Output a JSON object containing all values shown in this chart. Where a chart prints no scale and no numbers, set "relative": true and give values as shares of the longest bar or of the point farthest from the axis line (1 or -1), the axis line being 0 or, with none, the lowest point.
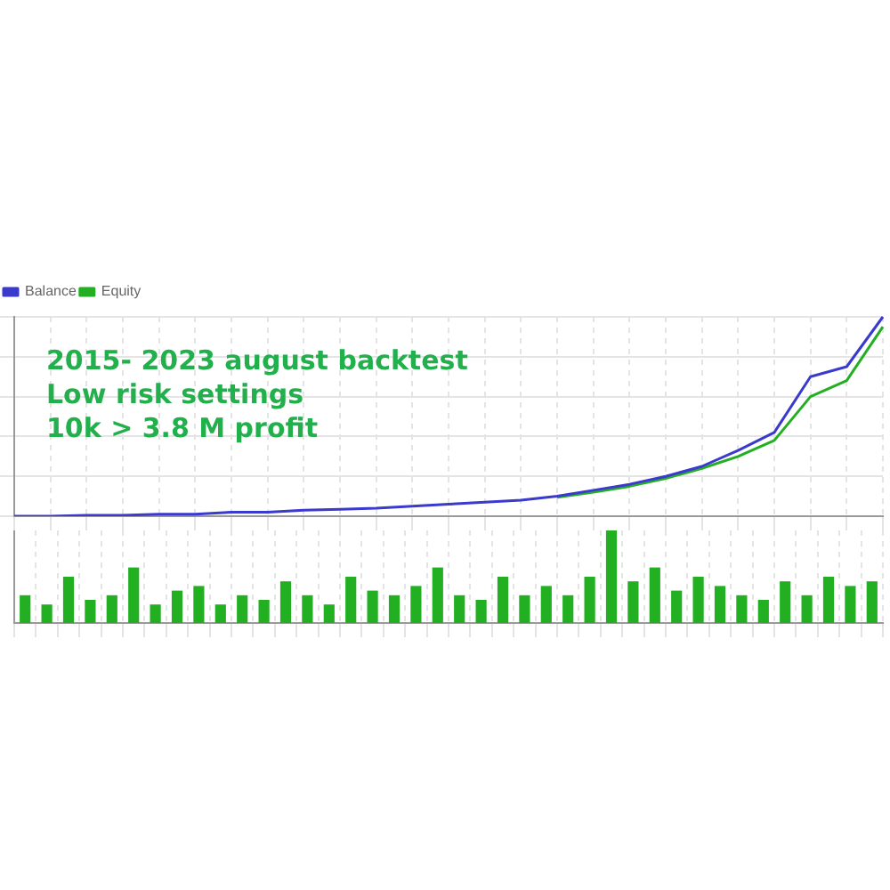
{
  "chart_data": [
    {
      "type": "line",
      "relative": true,
      "grid": true,
      "legend": "top left",
      "marker": "none",
      "categories": [
        null,
        null,
        null,
        null,
        null,
        null,
        null,
        null,
        null,
        null,
        null,
        null,
        null,
        null,
        null,
        null,
        null,
        null,
        null,
        null,
        null,
        null,
        null,
        null,
        null
      ],
      "series": [
        {
          "name": "Balance",
          "color": "#3a3acd",
          "values": [
            0,
            0,
            0.005,
            0.005,
            0.01,
            0.01,
            0.02,
            0.02,
            0.03,
            0.035,
            0.04,
            0.05,
            0.06,
            0.07,
            0.08,
            0.1,
            0.13,
            0.16,
            0.2,
            0.25,
            0.33,
            0.42,
            0.7,
            0.75,
            1.0
          ]
        },
        {
          "name": "Equity",
          "color": "#22b022",
          "values": [
            null,
            null,
            null,
            null,
            null,
            null,
            null,
            null,
            null,
            null,
            null,
            null,
            null,
            null,
            null,
            0.095,
            0.12,
            0.15,
            0.19,
            0.24,
            0.3,
            0.38,
            0.6,
            0.68,
            0.95
          ]
        }
      ],
      "annotations": [
        "2015- 2023 august backtest",
        "Low risk settings",
        "10k > 3.8 M profit"
      ]
    },
    {
      "type": "bar",
      "relative": true,
      "grid": "x",
      "categories": [
        null,
        null,
        null,
        null,
        null,
        null,
        null,
        null,
        null,
        null,
        null,
        null,
        null,
        null,
        null,
        null,
        null,
        null,
        null,
        null,
        null,
        null,
        null,
        null,
        null,
        null,
        null,
        null,
        null,
        null,
        null,
        null,
        null,
        null,
        null,
        null,
        null,
        null,
        null,
        null
      ],
      "series": [
        {
          "color": "#22b022",
          "values": [
            0.3,
            0.2,
            0.5,
            0.25,
            0.3,
            0.6,
            0.2,
            0.35,
            0.4,
            0.2,
            0.3,
            0.25,
            0.45,
            0.3,
            0.2,
            0.5,
            0.35,
            0.3,
            0.4,
            0.6,
            0.3,
            0.25,
            0.5,
            0.3,
            0.4,
            0.3,
            0.5,
            1.0,
            0.45,
            0.6,
            0.35,
            0.5,
            0.4,
            0.3,
            0.25,
            0.45,
            0.3,
            0.5,
            0.4,
            0.45
          ]
        }
      ]
    }
  ]
}
